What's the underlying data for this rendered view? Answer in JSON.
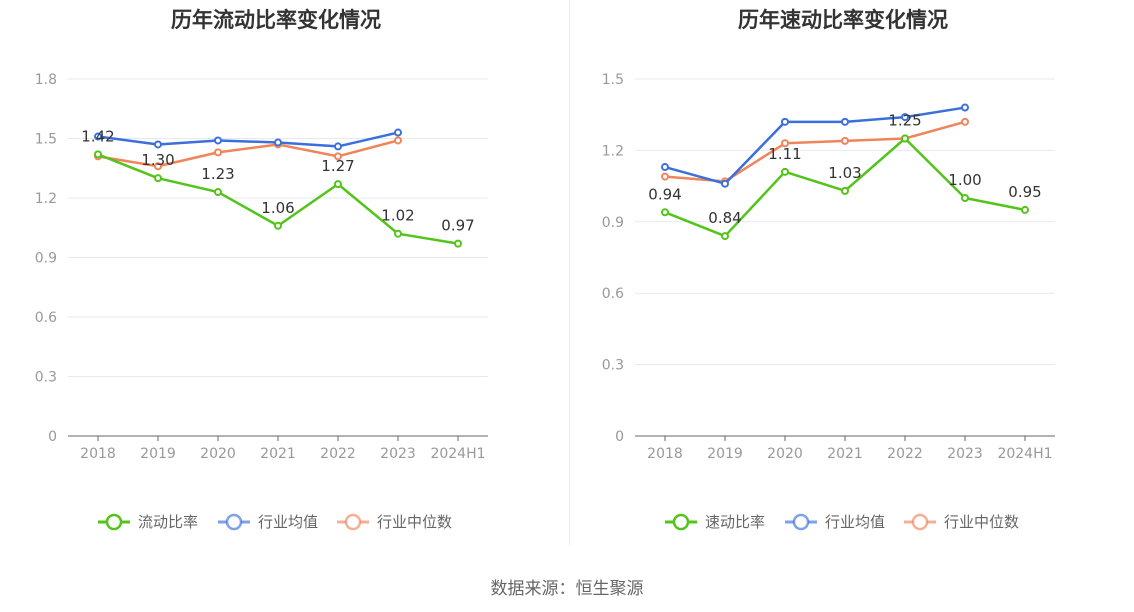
{
  "source": "数据来源：恒生聚源",
  "chart_data": [
    {
      "type": "line",
      "title": "历年流动比率变化情况",
      "categories": [
        "2018",
        "2019",
        "2020",
        "2021",
        "2022",
        "2023",
        "2024H1"
      ],
      "ylim": [
        0,
        1.8
      ],
      "yticks": [
        0,
        0.3,
        0.6,
        0.9,
        1.2,
        1.5,
        1.8
      ],
      "ytick_labels": [
        "0",
        "0.3",
        "0.6",
        "0.9",
        "1.2",
        "1.5",
        "1.8"
      ],
      "grid": true,
      "legend_position": "bottom",
      "series": [
        {
          "name": "流动比率",
          "color": "#52c41a",
          "values": [
            1.42,
            1.3,
            1.23,
            1.06,
            1.27,
            1.02,
            0.97
          ],
          "labels": [
            "1.42",
            "1.30",
            "1.23",
            "1.06",
            "1.27",
            "1.02",
            "0.97"
          ]
        },
        {
          "name": "行业均值",
          "color": "#3b6fdc",
          "values": [
            1.51,
            1.47,
            1.49,
            1.48,
            1.46,
            1.53,
            null
          ]
        },
        {
          "name": "行业中位数",
          "color": "#f0845a",
          "values": [
            1.41,
            1.36,
            1.43,
            1.47,
            1.41,
            1.49,
            null
          ]
        }
      ]
    },
    {
      "type": "line",
      "title": "历年速动比率变化情况",
      "categories": [
        "2018",
        "2019",
        "2020",
        "2021",
        "2022",
        "2023",
        "2024H1"
      ],
      "ylim": [
        0,
        1.5
      ],
      "yticks": [
        0,
        0.3,
        0.6,
        0.9,
        1.2,
        1.5
      ],
      "ytick_labels": [
        "0",
        "0.3",
        "0.6",
        "0.9",
        "1.2",
        "1.5"
      ],
      "grid": true,
      "legend_position": "bottom",
      "series": [
        {
          "name": "速动比率",
          "color": "#52c41a",
          "values": [
            0.94,
            0.84,
            1.11,
            1.03,
            1.25,
            1.0,
            0.95
          ],
          "labels": [
            "0.94",
            "0.84",
            "1.11",
            "1.03",
            "1.25",
            "1.00",
            "0.95"
          ]
        },
        {
          "name": "行业均值",
          "color": "#3b6fdc",
          "values": [
            1.13,
            1.06,
            1.32,
            1.32,
            1.34,
            1.38,
            null
          ]
        },
        {
          "name": "行业中位数",
          "color": "#f0845a",
          "values": [
            1.09,
            1.07,
            1.23,
            1.24,
            1.25,
            1.32,
            null
          ]
        }
      ]
    }
  ]
}
